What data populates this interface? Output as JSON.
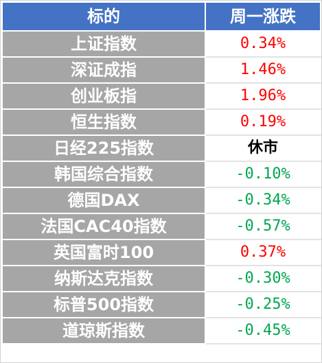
{
  "header": {
    "col_name": "标的",
    "col_change": "周一涨跌"
  },
  "rows": [
    {
      "name": "上证指数",
      "change": "0.34%",
      "direction": "up"
    },
    {
      "name": "深证成指",
      "change": "1.46%",
      "direction": "up"
    },
    {
      "name": "创业板指",
      "change": "1.96%",
      "direction": "up"
    },
    {
      "name": "恒生指数",
      "change": "0.19%",
      "direction": "up"
    },
    {
      "name": "日经225指数",
      "change": "休市",
      "direction": "flat"
    },
    {
      "name": "韩国综合指数",
      "change": "-0.10%",
      "direction": "down"
    },
    {
      "name": "德国DAX",
      "change": "-0.34%",
      "direction": "down"
    },
    {
      "name": "法国CAC40指数",
      "change": "-0.57%",
      "direction": "down"
    },
    {
      "name": "英国富时100",
      "change": "0.37%",
      "direction": "up"
    },
    {
      "name": "纳斯达克指数",
      "change": "-0.30%",
      "direction": "down"
    },
    {
      "name": "标普500指数",
      "change": "-0.25%",
      "direction": "down"
    },
    {
      "name": "道琼斯指数",
      "change": "-0.45%",
      "direction": "down"
    }
  ],
  "colors": {
    "header_bg": "#4472c4",
    "name_bg": "#a6a6a6",
    "up": "#ff0000",
    "down": "#00a650",
    "flat": "#000000"
  }
}
